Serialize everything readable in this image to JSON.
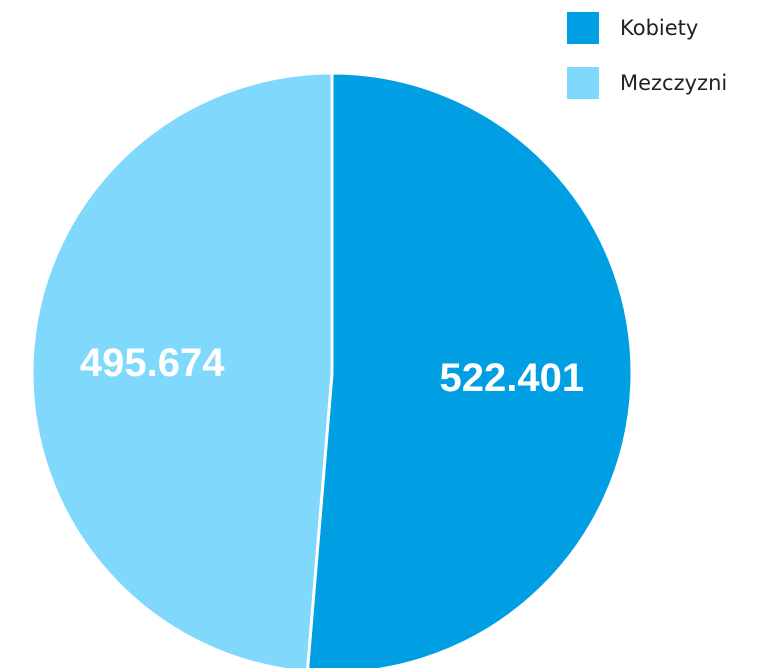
{
  "chart_data": {
    "type": "pie",
    "categories": [
      "Kobiety",
      "Mezczyzni"
    ],
    "values": [
      522401,
      495674
    ],
    "value_labels": [
      "522.401",
      "495.674"
    ],
    "colors": [
      "#009fe3",
      "#80d8fc"
    ],
    "legend": "top-right"
  }
}
